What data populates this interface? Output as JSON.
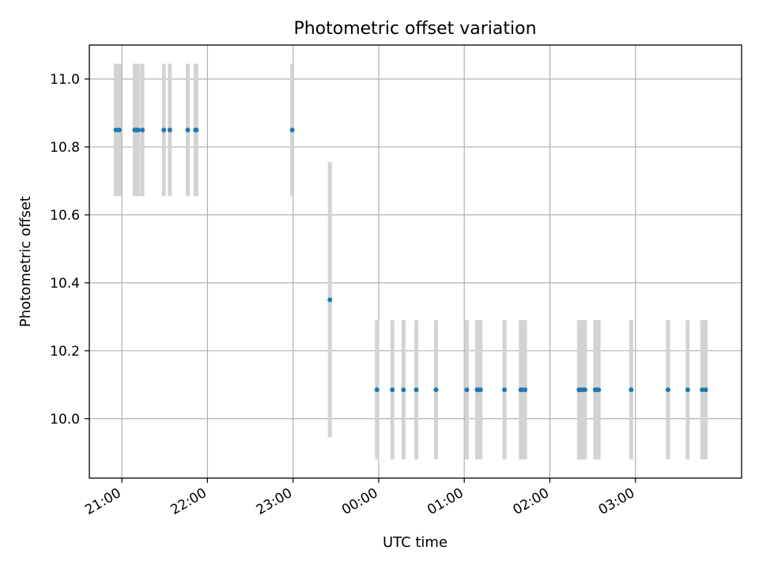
{
  "chart_data": {
    "type": "scatter",
    "title": "Photometric offset variation",
    "xlabel": "UTC time",
    "ylabel": "Photometric offset",
    "x_unit": "hours (UTC), values past midnight shown as >24",
    "xlim": [
      20.62,
      28.24
    ],
    "ylim": [
      9.825,
      11.1
    ],
    "grid": true,
    "x_ticks": [
      {
        "value": 21,
        "label": "21:00"
      },
      {
        "value": 22,
        "label": "22:00"
      },
      {
        "value": 23,
        "label": "23:00"
      },
      {
        "value": 24,
        "label": "00:00"
      },
      {
        "value": 25,
        "label": "01:00"
      },
      {
        "value": 26,
        "label": "02:00"
      },
      {
        "value": 27,
        "label": "03:00"
      }
    ],
    "y_ticks": [
      {
        "value": 10.0,
        "label": "10.0"
      },
      {
        "value": 10.2,
        "label": "10.2"
      },
      {
        "value": 10.4,
        "label": "10.4"
      },
      {
        "value": 10.6,
        "label": "10.6"
      },
      {
        "value": 10.8,
        "label": "10.8"
      },
      {
        "value": 11.0,
        "label": "11.0"
      }
    ],
    "colors": {
      "points": "#1f77b4",
      "errorbars": "#d3d3d3",
      "grid": "#b0b0b0"
    },
    "points": [
      {
        "x": 20.93,
        "y": 10.85,
        "err": 0.195
      },
      {
        "x": 20.97,
        "y": 10.85,
        "err": 0.195
      },
      {
        "x": 21.15,
        "y": 10.85,
        "err": 0.195
      },
      {
        "x": 21.17,
        "y": 10.85,
        "err": 0.195
      },
      {
        "x": 21.19,
        "y": 10.85,
        "err": 0.195
      },
      {
        "x": 21.24,
        "y": 10.85,
        "err": 0.195
      },
      {
        "x": 21.49,
        "y": 10.85,
        "err": 0.195
      },
      {
        "x": 21.56,
        "y": 10.85,
        "err": 0.195
      },
      {
        "x": 21.77,
        "y": 10.85,
        "err": 0.195
      },
      {
        "x": 21.86,
        "y": 10.85,
        "err": 0.195
      },
      {
        "x": 21.87,
        "y": 10.85,
        "err": 0.195
      },
      {
        "x": 22.99,
        "y": 10.85,
        "err": 0.195
      },
      {
        "x": 23.43,
        "y": 10.35,
        "err": 0.405
      },
      {
        "x": 23.98,
        "y": 10.085,
        "err": 0.205
      },
      {
        "x": 24.16,
        "y": 10.085,
        "err": 0.205
      },
      {
        "x": 24.29,
        "y": 10.085,
        "err": 0.205
      },
      {
        "x": 24.44,
        "y": 10.085,
        "err": 0.205
      },
      {
        "x": 24.67,
        "y": 10.085,
        "err": 0.205
      },
      {
        "x": 25.03,
        "y": 10.085,
        "err": 0.205
      },
      {
        "x": 25.15,
        "y": 10.085,
        "err": 0.205
      },
      {
        "x": 25.17,
        "y": 10.085,
        "err": 0.205
      },
      {
        "x": 25.19,
        "y": 10.085,
        "err": 0.205
      },
      {
        "x": 25.47,
        "y": 10.085,
        "err": 0.205
      },
      {
        "x": 25.66,
        "y": 10.085,
        "err": 0.205
      },
      {
        "x": 25.67,
        "y": 10.085,
        "err": 0.205
      },
      {
        "x": 25.71,
        "y": 10.085,
        "err": 0.205
      },
      {
        "x": 26.34,
        "y": 10.085,
        "err": 0.205
      },
      {
        "x": 26.36,
        "y": 10.085,
        "err": 0.205
      },
      {
        "x": 26.39,
        "y": 10.085,
        "err": 0.205
      },
      {
        "x": 26.41,
        "y": 10.085,
        "err": 0.205
      },
      {
        "x": 26.53,
        "y": 10.085,
        "err": 0.205
      },
      {
        "x": 26.55,
        "y": 10.085,
        "err": 0.205
      },
      {
        "x": 26.57,
        "y": 10.085,
        "err": 0.205
      },
      {
        "x": 26.95,
        "y": 10.085,
        "err": 0.205
      },
      {
        "x": 27.38,
        "y": 10.085,
        "err": 0.205
      },
      {
        "x": 27.61,
        "y": 10.085,
        "err": 0.205
      },
      {
        "x": 27.78,
        "y": 10.085,
        "err": 0.205
      },
      {
        "x": 27.82,
        "y": 10.085,
        "err": 0.205
      }
    ]
  }
}
